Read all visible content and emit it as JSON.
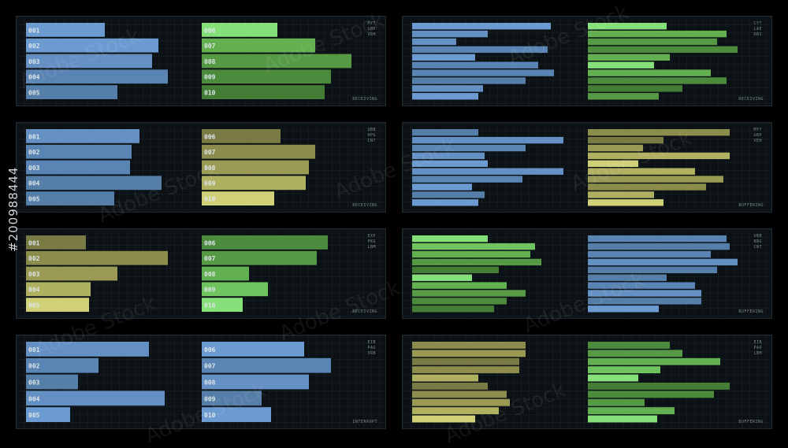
{
  "side_text": "#200988444",
  "watermark_text": "Adobe Stock",
  "panels": [
    {
      "codes": [
        "MYT",
        "GMP",
        "VBH"
      ],
      "status": "RECEIVING",
      "chart_data": {
        "type": "bar",
        "groups": [
          {
            "labels": [
              "001",
              "002",
              "003",
              "004",
              "005"
            ],
            "values": [
              0.5,
              0.84,
              0.8,
              0.9,
              0.58
            ],
            "colors": [
              "#6c9bd1",
              "#6c9bd1",
              "#6590c3",
              "#5a84b3",
              "#557ea8"
            ]
          },
          {
            "labels": [
              "006",
              "007",
              "008",
              "009",
              "010"
            ],
            "values": [
              0.48,
              0.72,
              0.95,
              0.82,
              0.78
            ],
            "colors": [
              "#85e07a",
              "#62b04f",
              "#579a46",
              "#4c8b3d",
              "#447e36"
            ]
          }
        ]
      }
    },
    {
      "codes": [
        "CYT",
        "LAE",
        "DBS"
      ],
      "status": "RECEIVING",
      "chart_data": {
        "type": "bar",
        "groups": [
          {
            "labels": [],
            "values": [
              0.88,
              0.48,
              0.28,
              0.86,
              0.4,
              0.8,
              0.9,
              0.72,
              0.45,
              0.42
            ],
            "colors": [
              "#6c9bd1",
              "#6590c3",
              "#6590c3",
              "#5a84b3",
              "#6c9bd1",
              "#5a84b3",
              "#5a84b3",
              "#557ea8",
              "#6590c3",
              "#6c9bd1"
            ]
          },
          {
            "labels": [],
            "values": [
              0.5,
              0.88,
              0.82,
              0.95,
              0.52,
              0.42,
              0.78,
              0.88,
              0.6,
              0.45
            ],
            "colors": [
              "#85e07a",
              "#62b04f",
              "#579a46",
              "#4c8b3d",
              "#62b04f",
              "#85e07a",
              "#62b04f",
              "#4c8b3d",
              "#447e36",
              "#579a46"
            ]
          }
        ]
      }
    },
    {
      "codes": [
        "UBB",
        "HPG",
        "CNT"
      ],
      "status": "RECEIVING",
      "chart_data": {
        "type": "bar",
        "groups": [
          {
            "labels": [
              "001",
              "002",
              "003",
              "004",
              "005"
            ],
            "values": [
              0.72,
              0.67,
              0.66,
              0.86,
              0.56
            ],
            "colors": [
              "#6590c3",
              "#5a84b3",
              "#5a84b3",
              "#557ea8",
              "#557ea8"
            ]
          },
          {
            "labels": [
              "006",
              "007",
              "008",
              "009",
              "010"
            ],
            "values": [
              0.5,
              0.72,
              0.68,
              0.66,
              0.46
            ],
            "colors": [
              "#7a7a44",
              "#8c8c4c",
              "#9a9a55",
              "#b0b061",
              "#d0d078"
            ]
          }
        ]
      }
    },
    {
      "codes": [
        "MYY",
        "GBP",
        "VEH"
      ],
      "status": "BUFFERING",
      "chart_data": {
        "type": "bar",
        "groups": [
          {
            "labels": [],
            "values": [
              0.42,
              0.96,
              0.72,
              0.46,
              0.48,
              0.96,
              0.7,
              0.38,
              0.46,
              0.42
            ],
            "colors": [
              "#557ea8",
              "#6590c3",
              "#5a84b3",
              "#6590c3",
              "#6c9bd1",
              "#6590c3",
              "#5a84b3",
              "#6c9bd1",
              "#557ea8",
              "#6c9bd1"
            ]
          },
          {
            "labels": [],
            "values": [
              0.9,
              0.48,
              0.35,
              0.9,
              0.32,
              0.68,
              0.86,
              0.75,
              0.42,
              0.48
            ],
            "colors": [
              "#8c8c4c",
              "#7a7a44",
              "#9a9a55",
              "#b0b061",
              "#d0d078",
              "#b0b061",
              "#9a9a55",
              "#8c8c4c",
              "#b0b061",
              "#d0d078"
            ]
          }
        ]
      }
    },
    {
      "codes": [
        "EXP",
        "PKG",
        "LBM"
      ],
      "status": "RECEIVING",
      "chart_data": {
        "type": "bar",
        "groups": [
          {
            "labels": [
              "001",
              "002",
              "003",
              "004",
              "005"
            ],
            "values": [
              0.38,
              0.9,
              0.58,
              0.41,
              0.4
            ],
            "colors": [
              "#7a7a44",
              "#8c8c4c",
              "#9a9a55",
              "#b0b061",
              "#d0d078"
            ]
          },
          {
            "labels": [
              "006",
              "007",
              "008",
              "009",
              "010"
            ],
            "values": [
              0.8,
              0.73,
              0.3,
              0.42,
              0.26
            ],
            "colors": [
              "#4c8b3d",
              "#579a46",
              "#62b04f",
              "#70c460",
              "#85e07a"
            ]
          }
        ]
      }
    },
    {
      "codes": [
        "UBB",
        "BBG",
        "CNT"
      ],
      "status": "BUFFERING",
      "chart_data": {
        "type": "bar",
        "groups": [
          {
            "labels": [],
            "values": [
              0.48,
              0.78,
              0.75,
              0.82,
              0.55,
              0.38,
              0.6,
              0.72,
              0.6,
              0.52
            ],
            "colors": [
              "#85e07a",
              "#70c460",
              "#62b04f",
              "#579a46",
              "#447e36",
              "#85e07a",
              "#62b04f",
              "#579a46",
              "#4c8b3d",
              "#447e36"
            ]
          },
          {
            "labels": [],
            "values": [
              0.88,
              0.9,
              0.78,
              0.95,
              0.82,
              0.5,
              0.68,
              0.72,
              0.72,
              0.45
            ],
            "colors": [
              "#5a84b3",
              "#557ea8",
              "#5a84b3",
              "#6590c3",
              "#557ea8",
              "#557ea8",
              "#5a84b3",
              "#6590c3",
              "#557ea8",
              "#6c9bd1"
            ]
          }
        ]
      }
    },
    {
      "codes": [
        "EIB",
        "PAG",
        "ORB"
      ],
      "status": "INTERRUPT",
      "chart_data": {
        "type": "bar",
        "groups": [
          {
            "labels": [
              "001",
              "002",
              "003",
              "004",
              "005"
            ],
            "values": [
              0.78,
              0.46,
              0.33,
              0.88,
              0.28
            ],
            "colors": [
              "#6590c3",
              "#5a84b3",
              "#557ea8",
              "#6590c3",
              "#6c9bd1"
            ]
          },
          {
            "labels": [
              "006",
              "007",
              "008",
              "009",
              "010"
            ],
            "values": [
              0.65,
              0.82,
              0.68,
              0.38,
              0.44
            ],
            "colors": [
              "#6c9bd1",
              "#5a84b3",
              "#6590c3",
              "#557ea8",
              "#6c9bd1"
            ]
          }
        ]
      }
    },
    {
      "codes": [
        "EIB",
        "PAO",
        "LBM"
      ],
      "status": "BUFFERING",
      "chart_data": {
        "type": "bar",
        "groups": [
          {
            "labels": [],
            "values": [
              0.72,
              0.72,
              0.68,
              0.68,
              0.42,
              0.48,
              0.6,
              0.62,
              0.55,
              0.4
            ],
            "colors": [
              "#8c8c4c",
              "#9a9a55",
              "#7a7a44",
              "#8c8c4c",
              "#b0b061",
              "#7a7a44",
              "#8c8c4c",
              "#9a9a55",
              "#b0b061",
              "#d0d078"
            ]
          },
          {
            "labels": [],
            "values": [
              0.52,
              0.6,
              0.84,
              0.46,
              0.32,
              0.9,
              0.8,
              0.36,
              0.55,
              0.44
            ],
            "colors": [
              "#4c8b3d",
              "#579a46",
              "#62b04f",
              "#70c460",
              "#85e07a",
              "#447e36",
              "#4c8b3d",
              "#579a46",
              "#62b04f",
              "#85e07a"
            ]
          }
        ]
      }
    }
  ]
}
